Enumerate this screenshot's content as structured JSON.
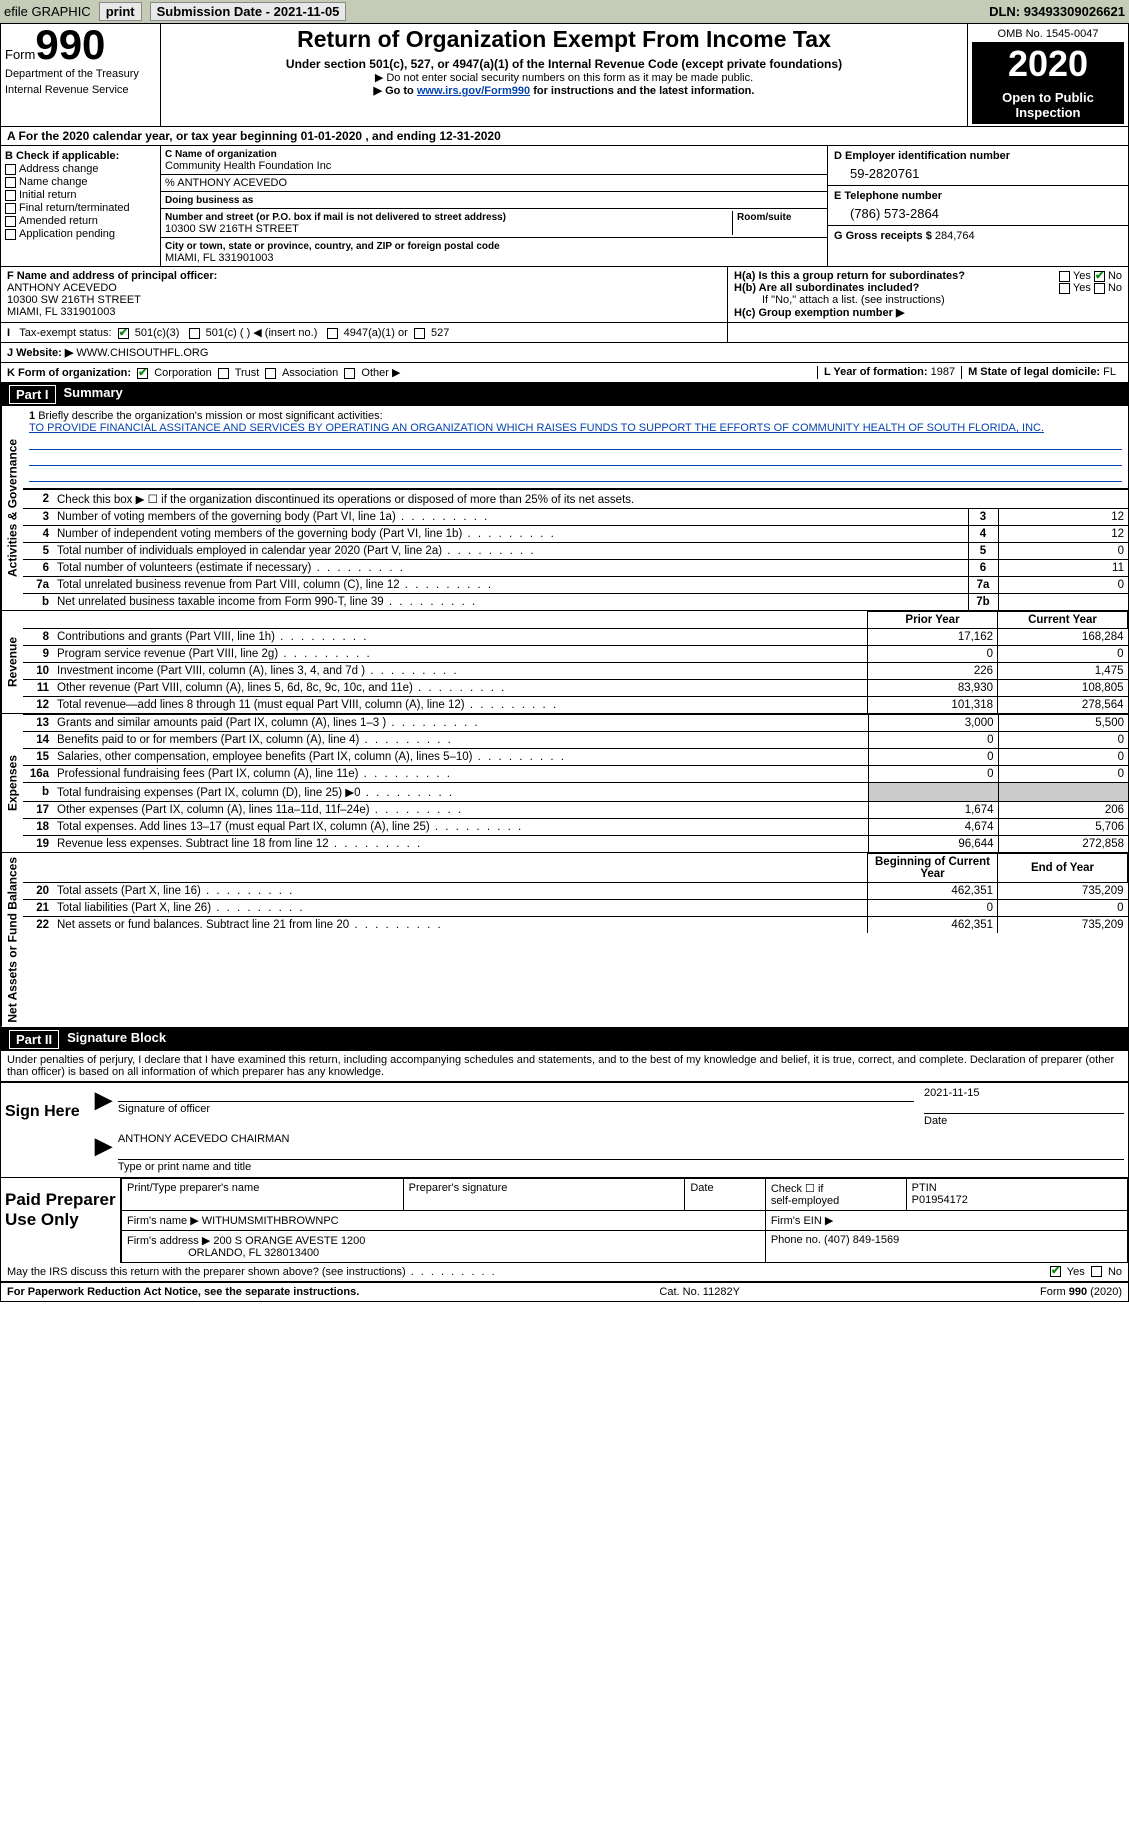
{
  "topbar": {
    "efile": "efile GRAPHIC",
    "print": "print",
    "subdate_lbl": "Submission Date - ",
    "subdate": "2021-11-05",
    "dln_lbl": "DLN: ",
    "dln": "93493309026621"
  },
  "header": {
    "form_word": "Form",
    "form_no": "990",
    "dept1": "Department of the Treasury",
    "dept2": "Internal Revenue Service",
    "title": "Return of Organization Exempt From Income Tax",
    "sub1": "Under section 501(c), 527, or 4947(a)(1) of the Internal Revenue Code (except private foundations)",
    "sub2": "▶ Do not enter social security numbers on this form as it may be made public.",
    "sub3a": "▶ Go to ",
    "sub3link": "www.irs.gov/Form990",
    "sub3b": " for instructions and the latest information.",
    "omb": "OMB No. 1545-0047",
    "year": "2020",
    "inspect": "Open to Public Inspection"
  },
  "rowA": "A For the 2020 calendar year, or tax year beginning 01-01-2020    , and ending 12-31-2020",
  "colB": {
    "hdr": "B Check if applicable:",
    "opts": [
      "Address change",
      "Name change",
      "Initial return",
      "Final return/terminated",
      "Amended return",
      "Application pending"
    ]
  },
  "colC": {
    "l_name": "C Name of organization",
    "name": "Community Health Foundation Inc",
    "care": "% ANTHONY ACEVEDO",
    "l_dba": "Doing business as",
    "l_addr": "Number and street (or P.O. box if mail is not delivered to street address)",
    "l_room": "Room/suite",
    "addr": "10300 SW 216TH STREET",
    "l_city": "City or town, state or province, country, and ZIP or foreign postal code",
    "city": "MIAMI, FL  331901003"
  },
  "colD": {
    "l_ein": "D Employer identification number",
    "ein": "59-2820761",
    "l_tel": "E Telephone number",
    "tel": "(786) 573-2864",
    "l_gross": "G Gross receipts $ ",
    "gross": "284,764"
  },
  "rowF": {
    "lbl": "F Name and address of principal officer:",
    "l1": "ANTHONY ACEVEDO",
    "l2": "10300 SW 216TH STREET",
    "l3": "MIAMI, FL  331901003"
  },
  "rowH": {
    "ha": "H(a)  Is this a group return for subordinates?",
    "hb": "H(b)  Are all subordinates included?",
    "hbnote": "If \"No,\" attach a list. (see instructions)",
    "hc": "H(c)  Group exemption number ▶",
    "yes": "Yes",
    "no": "No"
  },
  "rowI": {
    "lbl": "Tax-exempt status:",
    "o1": "501(c)(3)",
    "o2": "501(c) (   ) ◀ (insert no.)",
    "o3": "4947(a)(1) or",
    "o4": "527"
  },
  "rowJ": {
    "lbl": "J   Website: ▶",
    "val": "WWW.CHISOUTHFL.ORG"
  },
  "rowK": {
    "lbl": "K Form of organization:",
    "o1": "Corporation",
    "o2": "Trust",
    "o3": "Association",
    "o4": "Other ▶",
    "L": "L Year of formation: ",
    "Lv": "1987",
    "M": "M State of legal domicile: ",
    "Mv": "FL"
  },
  "partI": {
    "tag": "Part I",
    "title": "Summary"
  },
  "summary1": {
    "q": "Briefly describe the organization's mission or most significant activities:",
    "txt": "TO PROVIDE FINANCIAL ASSITANCE AND SERVICES BY OPERATING AN ORGANIZATION WHICH RAISES FUNDS TO SUPPORT THE EFFORTS OF COMMUNITY HEALTH OF SOUTH FLORIDA, INC."
  },
  "lines_gov": [
    {
      "n": "2",
      "t": "Check this box ▶ ☐  if the organization discontinued its operations or disposed of more than 25% of its net assets.",
      "ln": "",
      "v": ""
    },
    {
      "n": "3",
      "t": "Number of voting members of the governing body (Part VI, line 1a)",
      "ln": "3",
      "v": "12"
    },
    {
      "n": "4",
      "t": "Number of independent voting members of the governing body (Part VI, line 1b)",
      "ln": "4",
      "v": "12"
    },
    {
      "n": "5",
      "t": "Total number of individuals employed in calendar year 2020 (Part V, line 2a)",
      "ln": "5",
      "v": "0"
    },
    {
      "n": "6",
      "t": "Total number of volunteers (estimate if necessary)",
      "ln": "6",
      "v": "11"
    },
    {
      "n": "7a",
      "t": "Total unrelated business revenue from Part VIII, column (C), line 12",
      "ln": "7a",
      "v": "0"
    },
    {
      "n": "b",
      "t": "Net unrelated business taxable income from Form 990-T, line 39",
      "ln": "7b",
      "v": ""
    }
  ],
  "col_hdrs": {
    "py": "Prior Year",
    "cy": "Current Year",
    "bcy": "Beginning of Current Year",
    "eoy": "End of Year"
  },
  "lines_rev": [
    {
      "n": "8",
      "t": "Contributions and grants (Part VIII, line 1h)",
      "py": "17,162",
      "cy": "168,284"
    },
    {
      "n": "9",
      "t": "Program service revenue (Part VIII, line 2g)",
      "py": "0",
      "cy": "0"
    },
    {
      "n": "10",
      "t": "Investment income (Part VIII, column (A), lines 3, 4, and 7d )",
      "py": "226",
      "cy": "1,475"
    },
    {
      "n": "11",
      "t": "Other revenue (Part VIII, column (A), lines 5, 6d, 8c, 9c, 10c, and 11e)",
      "py": "83,930",
      "cy": "108,805"
    },
    {
      "n": "12",
      "t": "Total revenue—add lines 8 through 11 (must equal Part VIII, column (A), line 12)",
      "py": "101,318",
      "cy": "278,564"
    }
  ],
  "lines_exp": [
    {
      "n": "13",
      "t": "Grants and similar amounts paid (Part IX, column (A), lines 1–3 )",
      "py": "3,000",
      "cy": "5,500"
    },
    {
      "n": "14",
      "t": "Benefits paid to or for members (Part IX, column (A), line 4)",
      "py": "0",
      "cy": "0"
    },
    {
      "n": "15",
      "t": "Salaries, other compensation, employee benefits (Part IX, column (A), lines 5–10)",
      "py": "0",
      "cy": "0"
    },
    {
      "n": "16a",
      "t": "Professional fundraising fees (Part IX, column (A), line 11e)",
      "py": "0",
      "cy": "0"
    },
    {
      "n": "b",
      "t": "Total fundraising expenses (Part IX, column (D), line 25) ▶0",
      "py": "GRAY",
      "cy": "GRAY"
    },
    {
      "n": "17",
      "t": "Other expenses (Part IX, column (A), lines 11a–11d, 11f–24e)",
      "py": "1,674",
      "cy": "206"
    },
    {
      "n": "18",
      "t": "Total expenses. Add lines 13–17 (must equal Part IX, column (A), line 25)",
      "py": "4,674",
      "cy": "5,706"
    },
    {
      "n": "19",
      "t": "Revenue less expenses. Subtract line 18 from line 12",
      "py": "96,644",
      "cy": "272,858"
    }
  ],
  "lines_na": [
    {
      "n": "20",
      "t": "Total assets (Part X, line 16)",
      "py": "462,351",
      "cy": "735,209"
    },
    {
      "n": "21",
      "t": "Total liabilities (Part X, line 26)",
      "py": "0",
      "cy": "0"
    },
    {
      "n": "22",
      "t": "Net assets or fund balances. Subtract line 21 from line 20",
      "py": "462,351",
      "cy": "735,209"
    }
  ],
  "vlabels": {
    "gov": "Activities & Governance",
    "rev": "Revenue",
    "exp": "Expenses",
    "na": "Net Assets or Fund Balances"
  },
  "partII": {
    "tag": "Part II",
    "title": "Signature Block"
  },
  "penalty": "Under penalties of perjury, I declare that I have examined this return, including accompanying schedules and statements, and to the best of my knowledge and belief, it is true, correct, and complete. Declaration of preparer (other than officer) is based on all information of which preparer has any knowledge.",
  "sign": {
    "here": "Sign Here",
    "sig_lbl": "Signature of officer",
    "date_lbl": "Date",
    "date": "2021-11-15",
    "name": "ANTHONY ACEVEDO CHAIRMAN",
    "name_lbl": "Type or print name and title"
  },
  "prep": {
    "hdr": "Paid Preparer Use Only",
    "c1": "Print/Type preparer's name",
    "c2": "Preparer's signature",
    "c3": "Date",
    "c4a": "Check ☐ if",
    "c4b": "self-employed",
    "c5": "PTIN",
    "ptin": "P01954172",
    "firm_lbl": "Firm's name   ▶",
    "firm": "WITHUMSMITHBROWNPC",
    "ein_lbl": "Firm's EIN ▶",
    "addr_lbl": "Firm's address ▶",
    "addr1": "200 S ORANGE AVESTE 1200",
    "addr2": "ORLANDO, FL  328013400",
    "ph_lbl": "Phone no. ",
    "ph": "(407) 849-1569"
  },
  "discuss": "May the IRS discuss this return with the preparer shown above? (see instructions)",
  "foot": {
    "l": "For Paperwork Reduction Act Notice, see the separate instructions.",
    "c": "Cat. No. 11282Y",
    "r": "Form 990 (2020)"
  }
}
